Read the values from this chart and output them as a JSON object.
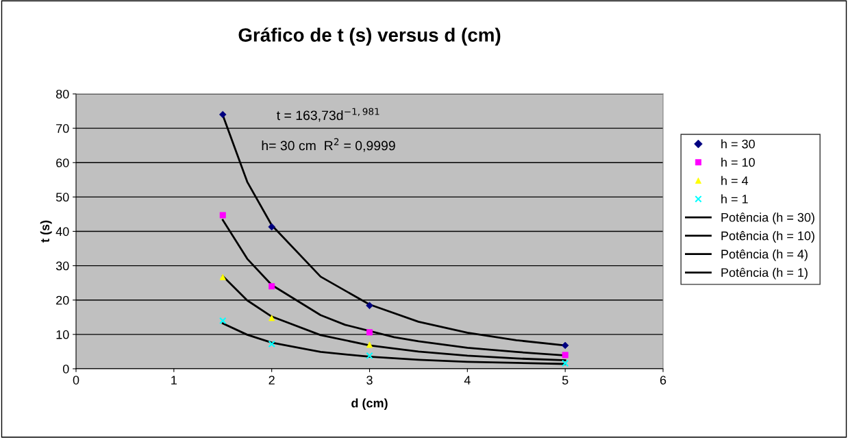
{
  "chart_data": {
    "type": "scatter",
    "title": "Gráfico de t (s) versus d (cm)",
    "xlabel": "d (cm)",
    "ylabel": "t (s)",
    "x": [
      1.5,
      2,
      3,
      5
    ],
    "series": [
      {
        "name": "h = 30",
        "color": "#000080",
        "marker": "diamond",
        "values": [
          74,
          41.3,
          18.4,
          6.8
        ]
      },
      {
        "name": "h = 10",
        "color": "#ff00ff",
        "marker": "square",
        "values": [
          44.7,
          24,
          10.6,
          4.0
        ]
      },
      {
        "name": "h = 4",
        "color": "#ffff00",
        "marker": "triangle",
        "values": [
          26.7,
          14.8,
          7.0,
          null
        ]
      },
      {
        "name": "h = 1",
        "color": "#00ffff",
        "marker": "cross",
        "values": [
          14,
          7.2,
          3.8,
          1.6
        ]
      },
      {
        "name": "Potência (h = 30)",
        "type": "line",
        "color": "#000000",
        "marker": "none",
        "x": [
          1.5,
          1.75,
          2,
          2.5,
          3,
          3.5,
          4,
          4.5,
          5
        ],
        "values": [
          73.8,
          54.4,
          41.8,
          26.8,
          18.7,
          13.7,
          10.5,
          8.3,
          6.8
        ]
      },
      {
        "name": "Potência (h = 10)",
        "type": "line",
        "color": "#000000",
        "marker": "none",
        "x": [
          1.5,
          1.75,
          2,
          2.5,
          2.75,
          3.25,
          3.5,
          4,
          4.5,
          5
        ],
        "values": [
          43.3,
          32,
          24.4,
          15.6,
          12.8,
          9.2,
          8.0,
          6.1,
          4.9,
          3.9
        ]
      },
      {
        "name": "Potência (h = 4)",
        "type": "line",
        "color": "#000000",
        "marker": "none",
        "x": [
          1.5,
          1.75,
          2,
          2.5,
          3,
          3.5,
          4,
          4.5,
          5
        ],
        "values": [
          27,
          19.9,
          15.2,
          9.8,
          6.8,
          5.0,
          3.8,
          3.0,
          2.5
        ]
      },
      {
        "name": "Potência (h = 1)",
        "type": "line",
        "color": "#000000",
        "marker": "none",
        "x": [
          1.5,
          1.75,
          2,
          2.5,
          3,
          3.5,
          4,
          4.5,
          5
        ],
        "values": [
          13.2,
          9.9,
          7.6,
          4.9,
          3.5,
          2.6,
          2.0,
          1.7,
          1.4
        ]
      }
    ],
    "annotations": [
      "t = 163,73d$^{−1,981}$",
      "h= 30 cm  R$^{2}$ = 0,9999"
    ],
    "xlim": [
      0,
      6
    ],
    "xticks": [
      0,
      1,
      2,
      3,
      4,
      5,
      6
    ],
    "ylim": [
      0,
      80
    ],
    "yticks": [
      0,
      10,
      20,
      30,
      40,
      50,
      60,
      70,
      80
    ],
    "grid": "y",
    "legend": "right"
  }
}
